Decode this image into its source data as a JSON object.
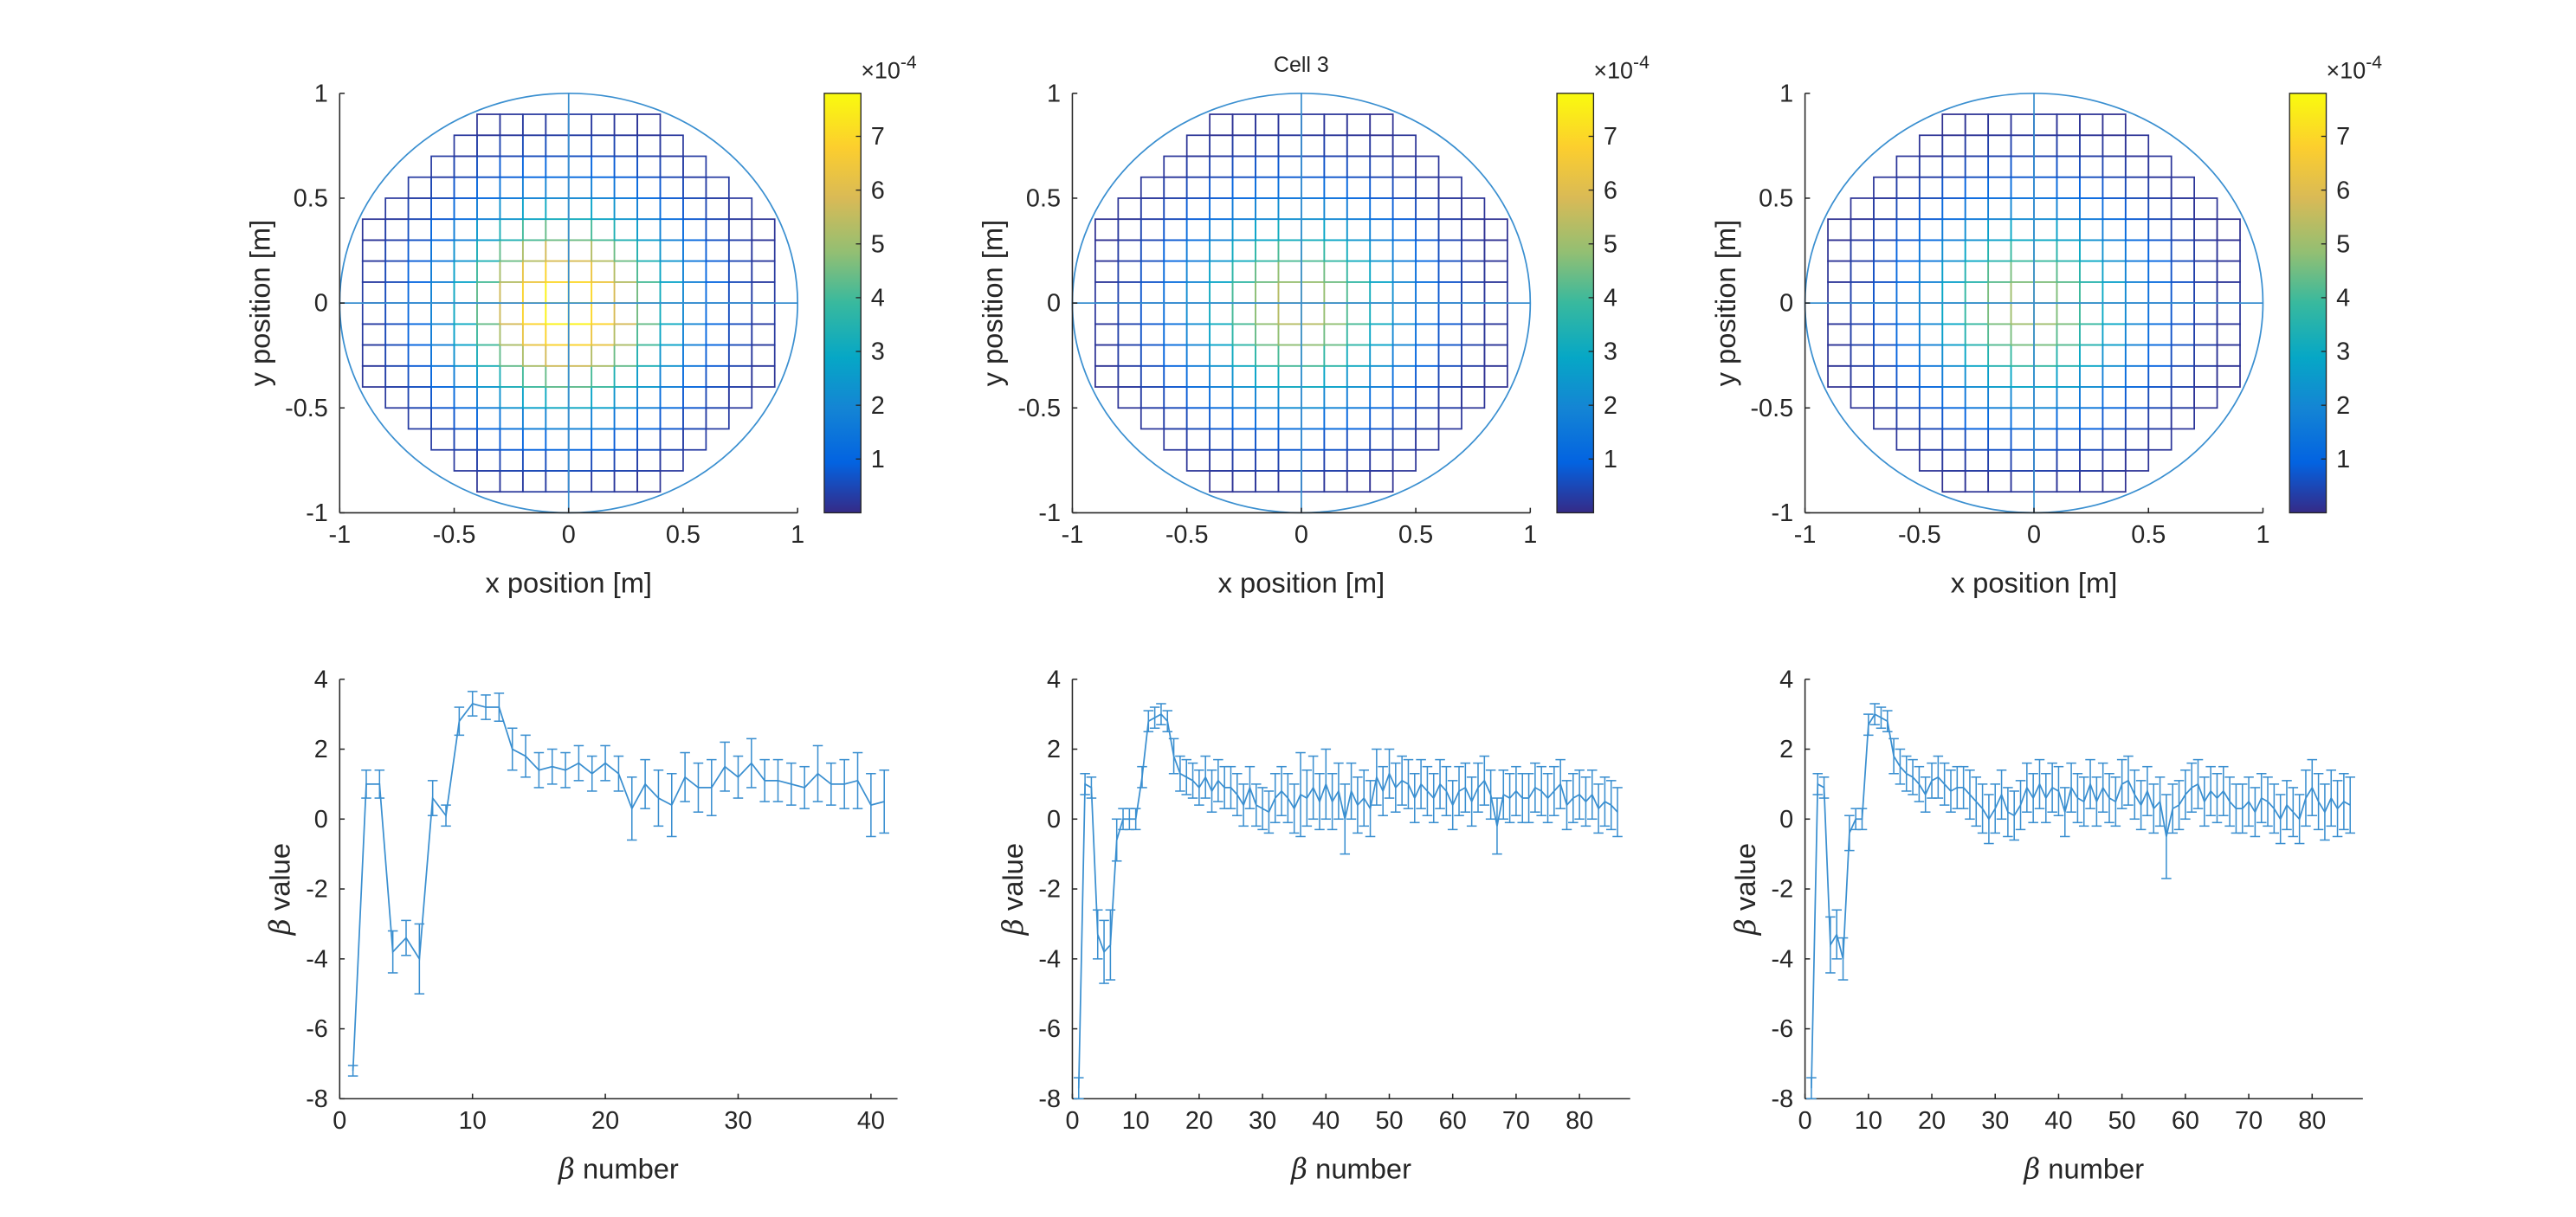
{
  "figure": {
    "title": "Cell 3",
    "colors": {
      "line": "#3a8fd0",
      "axis": "#262626",
      "background": "#ffffff"
    },
    "colormap": "parula"
  },
  "chart_data": [
    {
      "type": "heatmap",
      "panel": "top-left",
      "title": "",
      "xlabel": "x position [m]",
      "ylabel": "y position [m]",
      "xlim": [
        -1,
        1
      ],
      "ylim": [
        -1,
        1
      ],
      "xticks": [
        "-1",
        "-0.5",
        "0",
        "0.5",
        "1"
      ],
      "yticks": [
        "-1",
        "-0.5",
        "0",
        "0.5",
        "1"
      ],
      "circle_radius": 1,
      "grid_spacing": 0.1,
      "peak_value": 0.00078,
      "colorbar": {
        "range": [
          0,
          0.00078
        ],
        "ticks": [
          "1",
          "2",
          "3",
          "4",
          "5",
          "6",
          "7"
        ],
        "exponent_label": "×10",
        "exponent": "-4"
      }
    },
    {
      "type": "heatmap",
      "panel": "top-middle",
      "title": "Cell 3",
      "xlabel": "x position [m]",
      "ylabel": "y position [m]",
      "xlim": [
        -1,
        1
      ],
      "ylim": [
        -1,
        1
      ],
      "xticks": [
        "-1",
        "-0.5",
        "0",
        "0.5",
        "1"
      ],
      "yticks": [
        "-1",
        "-0.5",
        "0",
        "0.5",
        "1"
      ],
      "circle_radius": 1,
      "grid_spacing": 0.1,
      "peak_value": 0.00055,
      "colorbar": {
        "range": [
          0,
          0.00078
        ],
        "ticks": [
          "1",
          "2",
          "3",
          "4",
          "5",
          "6",
          "7"
        ],
        "exponent_label": "×10",
        "exponent": "-4"
      }
    },
    {
      "type": "heatmap",
      "panel": "top-right",
      "title": "",
      "xlabel": "x position [m]",
      "ylabel": "y position [m]",
      "xlim": [
        -1,
        1
      ],
      "ylim": [
        -1,
        1
      ],
      "xticks": [
        "-1",
        "-0.5",
        "0",
        "0.5",
        "1"
      ],
      "yticks": [
        "-1",
        "-0.5",
        "0",
        "0.5",
        "1"
      ],
      "circle_radius": 1,
      "grid_spacing": 0.1,
      "peak_value": 0.00052,
      "colorbar": {
        "range": [
          0,
          0.00078
        ],
        "ticks": [
          "1",
          "2",
          "3",
          "4",
          "5",
          "6",
          "7"
        ],
        "exponent_label": "×10",
        "exponent": "-4"
      }
    },
    {
      "type": "line",
      "panel": "bottom-left",
      "xlabel_symbol": "β",
      "xlabel": " number",
      "ylabel_symbol": "β",
      "ylabel": " value",
      "xlim": [
        0,
        42
      ],
      "ylim": [
        -8,
        4
      ],
      "xticks": [
        0,
        10,
        20,
        30,
        40
      ],
      "yticks": [
        -8,
        -6,
        -4,
        -2,
        0,
        2,
        4
      ],
      "x_start": 1,
      "values": [
        -7.2,
        1.0,
        1.0,
        -3.8,
        -3.4,
        -4.0,
        0.6,
        0.1,
        2.8,
        3.3,
        3.2,
        3.2,
        2.0,
        1.8,
        1.4,
        1.5,
        1.4,
        1.6,
        1.3,
        1.6,
        1.3,
        0.3,
        1.0,
        0.6,
        0.4,
        1.2,
        0.9,
        0.9,
        1.5,
        1.2,
        1.6,
        1.1,
        1.1,
        1.0,
        0.9,
        1.3,
        1.0,
        1.0,
        1.1,
        0.4,
        0.5
      ],
      "errors": [
        0.15,
        0.4,
        0.4,
        0.6,
        0.5,
        1.0,
        0.5,
        0.3,
        0.4,
        0.35,
        0.35,
        0.4,
        0.6,
        0.6,
        0.5,
        0.5,
        0.5,
        0.5,
        0.5,
        0.5,
        0.5,
        0.9,
        0.7,
        0.8,
        0.9,
        0.7,
        0.7,
        0.8,
        0.7,
        0.6,
        0.7,
        0.6,
        0.6,
        0.6,
        0.6,
        0.8,
        0.6,
        0.7,
        0.8,
        0.9,
        0.9
      ]
    },
    {
      "type": "line",
      "panel": "bottom-middle",
      "xlabel_symbol": "β",
      "xlabel": " number",
      "ylabel_symbol": "β",
      "ylabel": " value",
      "xlim": [
        0,
        88
      ],
      "ylim": [
        -8,
        4
      ],
      "xticks": [
        0,
        10,
        20,
        30,
        40,
        50,
        60,
        70,
        80
      ],
      "yticks": [
        -8,
        -6,
        -4,
        -2,
        0,
        2,
        4
      ],
      "x_start": 1,
      "values": [
        -7.7,
        1.0,
        0.9,
        -3.3,
        -3.8,
        -3.6,
        -0.6,
        0.0,
        0.0,
        0.0,
        1.2,
        2.8,
        2.9,
        3.0,
        2.8,
        1.8,
        1.3,
        1.2,
        1.1,
        0.9,
        1.2,
        0.8,
        1.1,
        0.9,
        0.9,
        0.7,
        0.4,
        0.9,
        0.4,
        0.3,
        0.2,
        0.6,
        0.8,
        0.6,
        0.3,
        0.7,
        0.6,
        0.9,
        0.5,
        1.0,
        0.5,
        0.8,
        0.0,
        0.8,
        0.4,
        0.6,
        0.3,
        1.2,
        0.8,
        1.3,
        0.9,
        1.1,
        1.0,
        0.6,
        1.0,
        0.8,
        0.6,
        1.0,
        0.8,
        0.4,
        0.8,
        0.9,
        0.5,
        0.9,
        1.1,
        0.7,
        -0.2,
        0.7,
        0.6,
        0.8,
        0.6,
        0.6,
        0.9,
        0.8,
        0.6,
        0.8,
        1.0,
        0.4,
        0.6,
        0.7,
        0.5,
        0.7,
        0.3,
        0.5,
        0.4,
        0.2
      ],
      "errors": [
        0.3,
        0.3,
        0.3,
        0.7,
        0.9,
        1.0,
        0.6,
        0.3,
        0.3,
        0.3,
        0.3,
        0.3,
        0.3,
        0.3,
        0.3,
        0.5,
        0.5,
        0.5,
        0.5,
        0.5,
        0.6,
        0.6,
        0.6,
        0.6,
        0.6,
        0.6,
        0.6,
        0.6,
        0.6,
        0.6,
        0.6,
        0.7,
        0.7,
        0.7,
        0.7,
        1.2,
        0.8,
        0.9,
        0.8,
        1.0,
        0.8,
        0.8,
        1.0,
        0.8,
        0.8,
        0.8,
        0.8,
        0.8,
        0.7,
        0.7,
        0.7,
        0.7,
        0.7,
        0.7,
        0.7,
        0.7,
        0.7,
        0.7,
        0.7,
        0.7,
        0.7,
        0.7,
        0.7,
        0.7,
        0.7,
        0.7,
        0.8,
        0.7,
        0.7,
        0.7,
        0.7,
        0.7,
        0.7,
        0.7,
        0.7,
        0.7,
        0.7,
        0.7,
        0.7,
        0.7,
        0.7,
        0.7,
        0.7,
        0.7,
        0.7,
        0.7
      ]
    },
    {
      "type": "line",
      "panel": "bottom-right",
      "xlabel_symbol": "β",
      "xlabel": " number",
      "ylabel_symbol": "β",
      "ylabel": " value",
      "xlim": [
        0,
        88
      ],
      "ylim": [
        -8,
        4
      ],
      "xticks": [
        0,
        10,
        20,
        30,
        40,
        50,
        60,
        70,
        80
      ],
      "yticks": [
        -8,
        -6,
        -4,
        -2,
        0,
        2,
        4
      ],
      "x_start": 1,
      "values": [
        -7.7,
        1.0,
        0.9,
        -3.6,
        -3.3,
        -4.0,
        -0.4,
        0.0,
        0.0,
        2.7,
        3.0,
        2.9,
        2.8,
        1.8,
        1.5,
        1.3,
        1.2,
        1.0,
        0.7,
        1.1,
        1.2,
        1.0,
        0.8,
        0.9,
        0.9,
        0.7,
        0.5,
        0.3,
        0.0,
        0.3,
        0.7,
        0.2,
        0.1,
        0.4,
        0.9,
        0.6,
        1.0,
        0.6,
        0.9,
        0.8,
        0.2,
        0.9,
        0.6,
        0.5,
        1.0,
        0.5,
        0.9,
        0.6,
        0.5,
        1.0,
        1.1,
        0.7,
        0.4,
        0.8,
        0.3,
        0.5,
        -0.5,
        0.3,
        0.4,
        0.7,
        0.9,
        1.0,
        0.5,
        0.8,
        0.6,
        0.8,
        0.5,
        0.3,
        0.3,
        0.5,
        0.2,
        0.6,
        0.5,
        0.3,
        0.0,
        0.4,
        0.2,
        0.0,
        0.6,
        0.9,
        0.5,
        0.2,
        0.6,
        0.3,
        0.5,
        0.4
      ],
      "errors": [
        0.3,
        0.3,
        0.3,
        0.8,
        0.7,
        0.6,
        0.5,
        0.3,
        0.3,
        0.3,
        0.3,
        0.3,
        0.3,
        0.5,
        0.5,
        0.5,
        0.5,
        0.5,
        0.5,
        0.5,
        0.6,
        0.6,
        0.6,
        0.6,
        0.6,
        0.7,
        0.7,
        0.7,
        0.7,
        0.7,
        0.7,
        0.7,
        0.7,
        0.7,
        0.7,
        0.7,
        0.7,
        0.7,
        0.7,
        0.7,
        0.7,
        0.7,
        0.7,
        0.7,
        0.7,
        0.7,
        0.7,
        0.7,
        0.7,
        0.7,
        0.7,
        0.7,
        0.7,
        0.7,
        0.7,
        0.7,
        1.2,
        0.7,
        0.7,
        0.7,
        0.7,
        0.7,
        0.7,
        0.7,
        0.7,
        0.7,
        0.7,
        0.7,
        0.7,
        0.7,
        0.7,
        0.7,
        0.7,
        0.7,
        0.7,
        0.7,
        0.7,
        0.7,
        0.8,
        0.8,
        0.8,
        0.8,
        0.8,
        0.8,
        0.8,
        0.8
      ]
    }
  ]
}
